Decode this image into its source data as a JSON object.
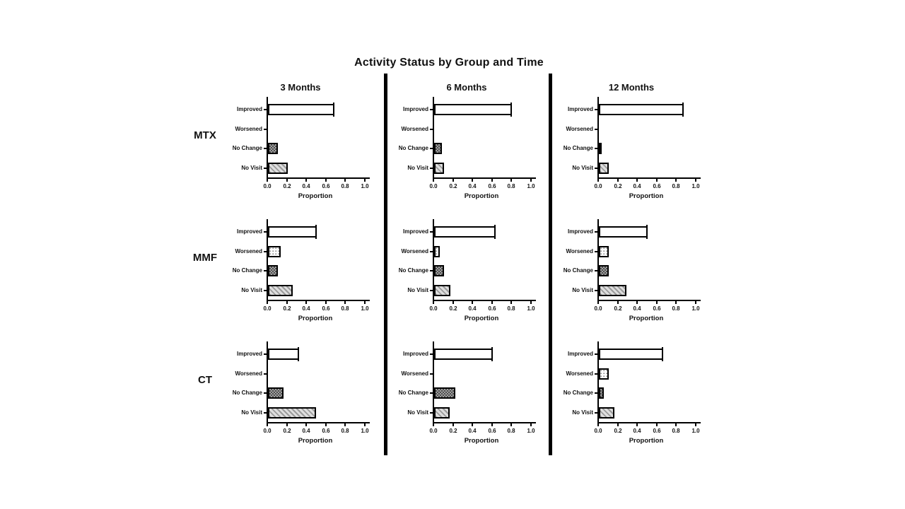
{
  "figure": {
    "background": "#ffffff",
    "axis_color": "#000000",
    "divider_color": "#000000"
  },
  "chart_data": {
    "type": "bar",
    "orientation": "horizontal",
    "title": "Activity Status by Group and Time",
    "column_titles": [
      "3 Months",
      "6 Months",
      "12 Months"
    ],
    "row_labels": [
      "MTX",
      "MMF",
      "CT"
    ],
    "categories": [
      "Improved",
      "Worsened",
      "No Change",
      "No Visit"
    ],
    "xlabel": "Proportion",
    "xlim": [
      0.0,
      1.0
    ],
    "xtick_labels": [
      "0.0",
      "0.2",
      "0.4",
      "0.6",
      "0.8",
      "1.0"
    ],
    "grid": false,
    "legend": "none",
    "bar_styles": {
      "Improved": {
        "fill": "#ffffff",
        "pattern": "open"
      },
      "Worsened": {
        "fill": "#fdfdfd",
        "pattern": "dots",
        "pattern_color": "#8a8a8a"
      },
      "No Change": {
        "fill": "#a0a0a0",
        "pattern": "checker",
        "pattern_color": "#4f4f4f"
      },
      "No Visit": {
        "fill": "#dedede",
        "pattern": "diagonal",
        "pattern_color": "#9b9b9b"
      }
    },
    "series": [
      {
        "group": "MTX",
        "time": "3 Months",
        "values": [
          0.68,
          0.0,
          0.1,
          0.2
        ]
      },
      {
        "group": "MTX",
        "time": "6 Months",
        "values": [
          0.8,
          0.0,
          0.08,
          0.1
        ]
      },
      {
        "group": "MTX",
        "time": "12 Months",
        "values": [
          0.87,
          0.0,
          0.03,
          0.1
        ]
      },
      {
        "group": "MMF",
        "time": "3 Months",
        "values": [
          0.5,
          0.13,
          0.1,
          0.25
        ]
      },
      {
        "group": "MMF",
        "time": "6 Months",
        "values": [
          0.63,
          0.06,
          0.1,
          0.17
        ]
      },
      {
        "group": "MMF",
        "time": "12 Months",
        "values": [
          0.5,
          0.1,
          0.1,
          0.28
        ]
      },
      {
        "group": "CT",
        "time": "3 Months",
        "values": [
          0.32,
          0.0,
          0.16,
          0.49
        ]
      },
      {
        "group": "CT",
        "time": "6 Months",
        "values": [
          0.6,
          0.0,
          0.22,
          0.16
        ]
      },
      {
        "group": "CT",
        "time": "12 Months",
        "values": [
          0.66,
          0.1,
          0.05,
          0.16
        ]
      }
    ]
  }
}
